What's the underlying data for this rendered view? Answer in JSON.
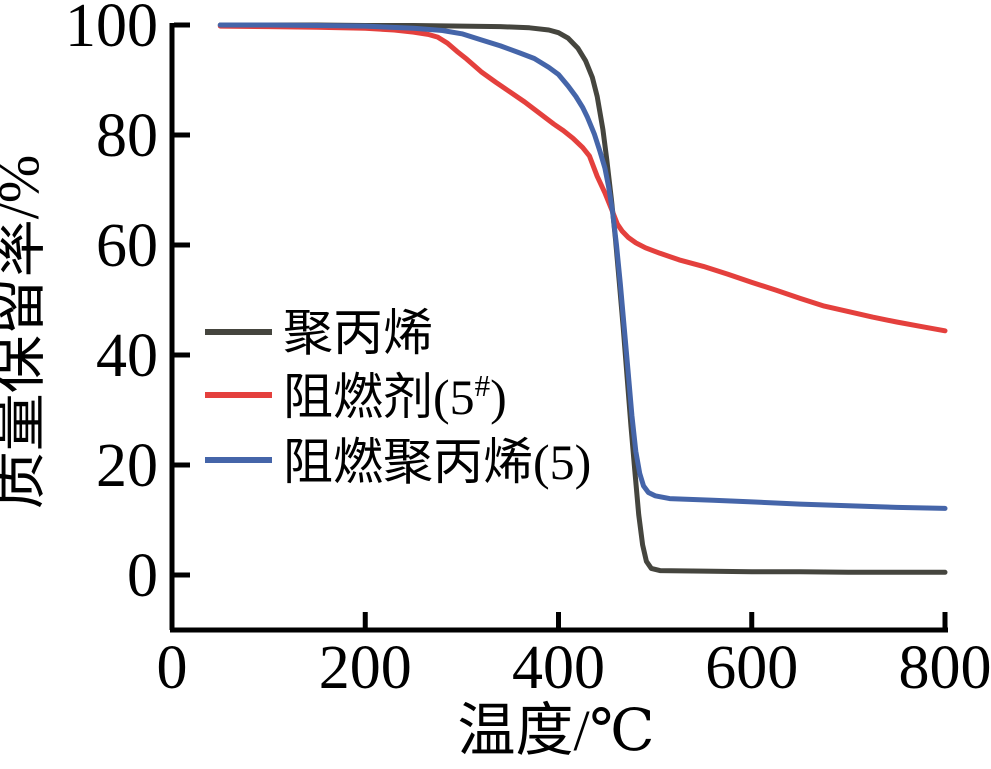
{
  "figure": {
    "background": "#ffffff",
    "axis_color": "#000000"
  },
  "chart_data": {
    "type": "line",
    "title": "",
    "xlabel": "温度/℃",
    "ylabel": "质量保留率/%",
    "xlim": [
      0,
      800
    ],
    "ylim": [
      0,
      100
    ],
    "x_ticks": [
      0,
      200,
      400,
      600,
      800
    ],
    "y_ticks": [
      0,
      20,
      40,
      60,
      80,
      100
    ],
    "grid": false,
    "legend_position": "center-left",
    "series": [
      {
        "name": "聚丙烯",
        "color": "#45453e",
        "points": [
          [
            50,
            100
          ],
          [
            100,
            100
          ],
          [
            150,
            100
          ],
          [
            200,
            99.9
          ],
          [
            250,
            99.9
          ],
          [
            300,
            99.8
          ],
          [
            340,
            99.7
          ],
          [
            370,
            99.5
          ],
          [
            390,
            99.1
          ],
          [
            400,
            98.6
          ],
          [
            410,
            97.6
          ],
          [
            420,
            95.8
          ],
          [
            428,
            93.5
          ],
          [
            435,
            90.5
          ],
          [
            440,
            87
          ],
          [
            446,
            81
          ],
          [
            450,
            75.5
          ],
          [
            455,
            68
          ],
          [
            459,
            61
          ],
          [
            463,
            53
          ],
          [
            467,
            45
          ],
          [
            471,
            36
          ],
          [
            475,
            27
          ],
          [
            479,
            19
          ],
          [
            483,
            11
          ],
          [
            487,
            5.5
          ],
          [
            491,
            2.5
          ],
          [
            496,
            1.2
          ],
          [
            505,
            0.8
          ],
          [
            550,
            0.7
          ],
          [
            600,
            0.6
          ],
          [
            650,
            0.6
          ],
          [
            700,
            0.5
          ],
          [
            750,
            0.5
          ],
          [
            800,
            0.5
          ]
        ]
      },
      {
        "name": "阻燃剂(5#)",
        "color": "#e4403d",
        "points": [
          [
            50,
            99.8
          ],
          [
            100,
            99.7
          ],
          [
            150,
            99.6
          ],
          [
            200,
            99.4
          ],
          [
            230,
            99.1
          ],
          [
            250,
            98.7
          ],
          [
            265,
            98.3
          ],
          [
            275,
            97.8
          ],
          [
            285,
            96.7
          ],
          [
            295,
            95.2
          ],
          [
            305,
            93.8
          ],
          [
            320,
            91.5
          ],
          [
            335,
            89.6
          ],
          [
            350,
            87.8
          ],
          [
            365,
            86
          ],
          [
            380,
            84
          ],
          [
            395,
            82
          ],
          [
            405,
            80.8
          ],
          [
            415,
            79.4
          ],
          [
            425,
            77.7
          ],
          [
            432,
            76.2
          ],
          [
            440,
            72.5
          ],
          [
            448,
            69.5
          ],
          [
            455,
            66.5
          ],
          [
            461,
            63.8
          ],
          [
            466,
            62.5
          ],
          [
            472,
            61.4
          ],
          [
            480,
            60.4
          ],
          [
            490,
            59.5
          ],
          [
            505,
            58.5
          ],
          [
            525,
            57.3
          ],
          [
            550,
            56.1
          ],
          [
            575,
            54.7
          ],
          [
            600,
            53.2
          ],
          [
            625,
            51.8
          ],
          [
            650,
            50.3
          ],
          [
            675,
            48.9
          ],
          [
            700,
            47.9
          ],
          [
            725,
            46.9
          ],
          [
            750,
            46
          ],
          [
            775,
            45.2
          ],
          [
            800,
            44.4
          ]
        ]
      },
      {
        "name": "阻燃聚丙烯(5)",
        "color": "#4565a9",
        "points": [
          [
            50,
            100
          ],
          [
            100,
            100
          ],
          [
            150,
            99.9
          ],
          [
            200,
            99.8
          ],
          [
            250,
            99.4
          ],
          [
            280,
            99
          ],
          [
            300,
            98.4
          ],
          [
            320,
            97.3
          ],
          [
            340,
            96.2
          ],
          [
            360,
            94.9
          ],
          [
            375,
            93.9
          ],
          [
            390,
            92.3
          ],
          [
            400,
            91
          ],
          [
            410,
            88.9
          ],
          [
            418,
            87
          ],
          [
            425,
            85
          ],
          [
            430,
            83.2
          ],
          [
            437,
            80.2
          ],
          [
            443,
            77
          ],
          [
            448,
            74
          ],
          [
            452,
            70.5
          ],
          [
            456,
            66
          ],
          [
            460,
            60
          ],
          [
            464,
            53
          ],
          [
            468,
            45
          ],
          [
            472,
            37
          ],
          [
            476,
            29
          ],
          [
            480,
            22.5
          ],
          [
            484,
            18.5
          ],
          [
            488,
            16.2
          ],
          [
            493,
            15
          ],
          [
            500,
            14.4
          ],
          [
            515,
            13.9
          ],
          [
            560,
            13.6
          ],
          [
            600,
            13.3
          ],
          [
            650,
            12.9
          ],
          [
            700,
            12.6
          ],
          [
            750,
            12.3
          ],
          [
            800,
            12.1
          ]
        ]
      }
    ]
  },
  "legend": {
    "items": [
      {
        "pre": "聚丙烯",
        "sup": "",
        "post": ""
      },
      {
        "pre": "阻燃剂(5",
        "sup": "#",
        "post": ")"
      },
      {
        "pre": "阻燃聚丙烯(5)",
        "sup": "",
        "post": ""
      }
    ]
  }
}
